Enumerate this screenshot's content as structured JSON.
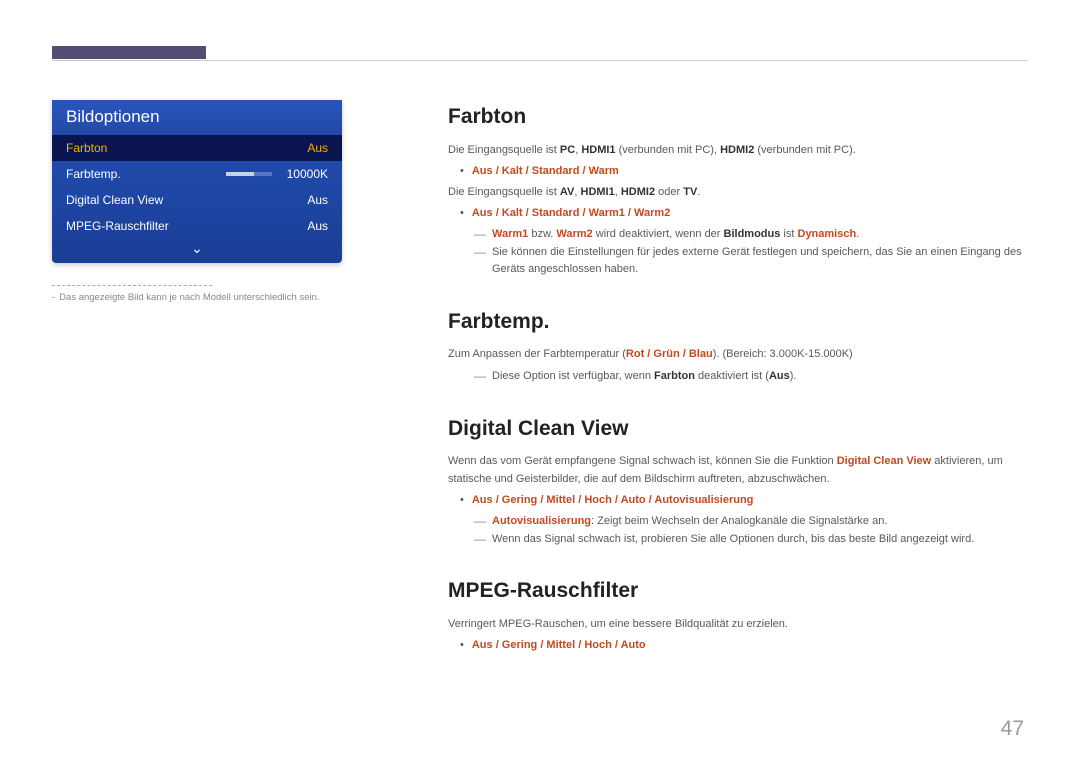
{
  "page_number": "47",
  "colors": {
    "highlight": "#c24a1f",
    "menu_gradient_top": "#2251b8",
    "menu_gradient_bottom": "#1b3e96",
    "menu_selected_bg": "#0a1550",
    "menu_selected_fg": "#f0b000",
    "tab_marker": "#534e74"
  },
  "menu": {
    "title": "Bildoptionen",
    "rows": [
      {
        "label": "Farbton",
        "value": "Aus",
        "selected": true,
        "slider": false
      },
      {
        "label": "Farbtemp.",
        "value": "10000K",
        "selected": false,
        "slider": true,
        "slider_pct": 60
      },
      {
        "label": "Digital Clean View",
        "value": "Aus",
        "selected": false,
        "slider": false
      },
      {
        "label": "MPEG-Rauschfilter",
        "value": "Aus",
        "selected": false,
        "slider": false
      }
    ]
  },
  "left_footnote": "Das angezeigte Bild kann je nach Modell unterschiedlich sein.",
  "sections": {
    "farbton": {
      "heading": "Farbton",
      "line1_pre": "Die Eingangsquelle ist ",
      "line1_b1": "PC",
      "line1_c1": ", ",
      "line1_b2": "HDMI1",
      "line1_c2": " (verbunden mit PC), ",
      "line1_b3": "HDMI2",
      "line1_post": " (verbunden mit PC).",
      "bullet1": "Aus / Kalt / Standard / Warm",
      "line2_pre": "Die Eingangsquelle ist ",
      "line2_b1": "AV",
      "line2_c1": ", ",
      "line2_b2": "HDMI1",
      "line2_c2": ", ",
      "line2_b3": "HDMI2",
      "line2_c3": " oder ",
      "line2_b4": "TV",
      "line2_post": ".",
      "bullet2": "Aus / Kalt / Standard / Warm1 / Warm2",
      "sub1_h1": "Warm1",
      "sub1_mid": " bzw. ",
      "sub1_h2": "Warm2",
      "sub1_rest1": " wird deaktiviert, wenn der ",
      "sub1_b": "Bildmodus",
      "sub1_rest2": " ist ",
      "sub1_h3": "Dynamisch",
      "sub1_dot": ".",
      "sub2": "Sie können die Einstellungen für jedes externe Gerät festlegen und speichern, das Sie an einen Eingang des Geräts angeschlossen haben."
    },
    "farbtemp": {
      "heading": "Farbtemp.",
      "line1_pre": "Zum Anpassen der Farbtemperatur (",
      "line1_h": "Rot / Grün / Blau",
      "line1_post": "). (Bereich: 3.000K-15.000K)",
      "sub_pre": "Diese Option ist verfügbar, wenn ",
      "sub_b": "Farbton",
      "sub_mid": " deaktiviert ist (",
      "sub_b2": "Aus",
      "sub_post": ")."
    },
    "dcv": {
      "heading": "Digital Clean View",
      "para_pre": "Wenn das vom Gerät empfangene Signal schwach ist, können Sie die Funktion ",
      "para_h": "Digital Clean View",
      "para_post": " aktivieren, um statische und Geisterbilder, die auf dem Bildschirm auftreten, abzuschwächen.",
      "bullet": "Aus / Gering / Mittel / Hoch / Auto / Autovisualisierung",
      "sub1_h": "Autovisualisierung",
      "sub1_rest": ": Zeigt beim Wechseln der Analogkanäle die Signalstärke an.",
      "sub2": "Wenn das Signal schwach ist, probieren Sie alle Optionen durch, bis das beste Bild angezeigt wird."
    },
    "mpeg": {
      "heading": "MPEG-Rauschfilter",
      "para": "Verringert MPEG-Rauschen, um eine bessere Bildqualität zu erzielen.",
      "bullet": "Aus / Gering / Mittel / Hoch / Auto"
    }
  }
}
